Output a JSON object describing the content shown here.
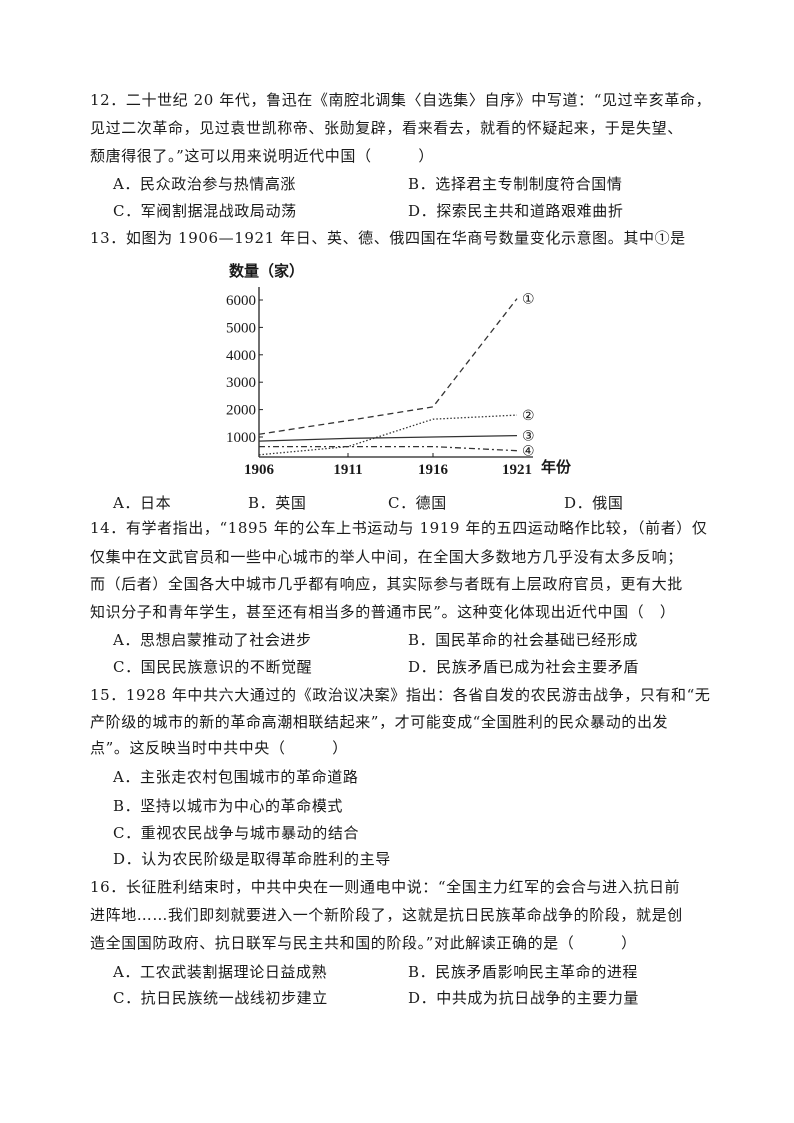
{
  "questions": [
    {
      "number": "12",
      "lines": [
        "12．二十世纪 20 年代，鲁迅在《南腔北调集〈自选集〉自序》中写道：“见过辛亥革命，",
        "见过二次革命，见过袁世凯称帝、张勋复辟，看来看去，就看的怀疑起来，于是失望、",
        "颓唐得很了。”这可以用来说明近代中国（　　　）"
      ],
      "options": [
        "A．民众政治参与热情高涨",
        "B．选择君主专制制度符合国情",
        "C．军阀割据混战政局动荡",
        "D．探索民主共和道路艰难曲折"
      ]
    },
    {
      "number": "13",
      "lines": [
        "13．如图为 1906—1921 年日、英、德、俄四国在华商号数量变化示意图。其中①是"
      ],
      "options": [
        "A．日本",
        "B．英国",
        "C．德国",
        "D．俄国"
      ]
    },
    {
      "number": "14",
      "lines": [
        "14．有学者指出，“1895 年的公车上书运动与 1919 年的五四运动略作比较，（前者）仅",
        "仅集中在文武官员和一些中心城市的举人中间，在全国大多数地方几乎没有太多反响；",
        "而（后者）全国各大中城市几乎都有响应，其实际参与者既有上层政府官员，更有大批",
        "知识分子和青年学生，甚至还有相当多的普通市民”。这种变化体现出近代中国（　）"
      ],
      "options": [
        "A．思想启蒙推动了社会进步",
        "B．国民革命的社会基础已经形成",
        "C．国民民族意识的不断觉醒",
        "D．民族矛盾已成为社会主要矛盾"
      ]
    },
    {
      "number": "15",
      "lines": [
        "15．1928 年中共六大通过的《政治议决案》指出：各省自发的农民游击战争，只有和“无",
        "产阶级的城市的新的革命高潮相联结起来”，才可能变成“全国胜利的民众暴动的出发",
        "点”。这反映当时中共中央（　　　）"
      ],
      "options": [
        "A．主张走农村包围城市的革命道路",
        "B．坚持以城市为中心的革命模式",
        "C．重视农民战争与城市暴动的结合",
        "D．认为农民阶级是取得革命胜利的主导"
      ]
    },
    {
      "number": "16",
      "lines": [
        "16．长征胜利结束时，中共中央在一则通电中说：“全国主力红军的会合与进入抗日前",
        "进阵地……我们即刻就要进入一个新阶段了，这就是抗日民族革命战争的阶段，就是创",
        "造全国国防政府、抗日联军与民主共和国的阶段。”对此解读正确的是（　　　）"
      ],
      "options": [
        "A．工农武装割据理论日益成熟",
        "B．民族矛盾影响民主革命的进程",
        "C．抗日民族统一战线初步建立",
        "D．中共成为抗日战争的主要力量"
      ]
    }
  ],
  "chart_data": {
    "type": "line",
    "ylabel": "数量（家）",
    "xlabel": "年份",
    "x": [
      1906,
      1911,
      1916,
      1921
    ],
    "x_tick_labels": [
      "1906",
      "1911",
      "1916",
      "1921"
    ],
    "y_tick_labels": [
      "1000",
      "2000",
      "3000",
      "4000",
      "5000",
      "6000"
    ],
    "y_ticks": [
      1000,
      2000,
      3000,
      4000,
      5000,
      6000
    ],
    "ylim": [
      250,
      6500
    ],
    "grid": false,
    "series": [
      {
        "name": "①",
        "style": "dashed",
        "values": [
          1100,
          1600,
          2100,
          6050
        ]
      },
      {
        "name": "②",
        "style": "dotted",
        "values": [
          350,
          650,
          1650,
          1800
        ]
      },
      {
        "name": "③",
        "style": "solid",
        "values": [
          850,
          950,
          1000,
          1050
        ]
      },
      {
        "name": "④",
        "style": "dash-dot",
        "values": [
          650,
          650,
          650,
          500
        ]
      }
    ]
  }
}
